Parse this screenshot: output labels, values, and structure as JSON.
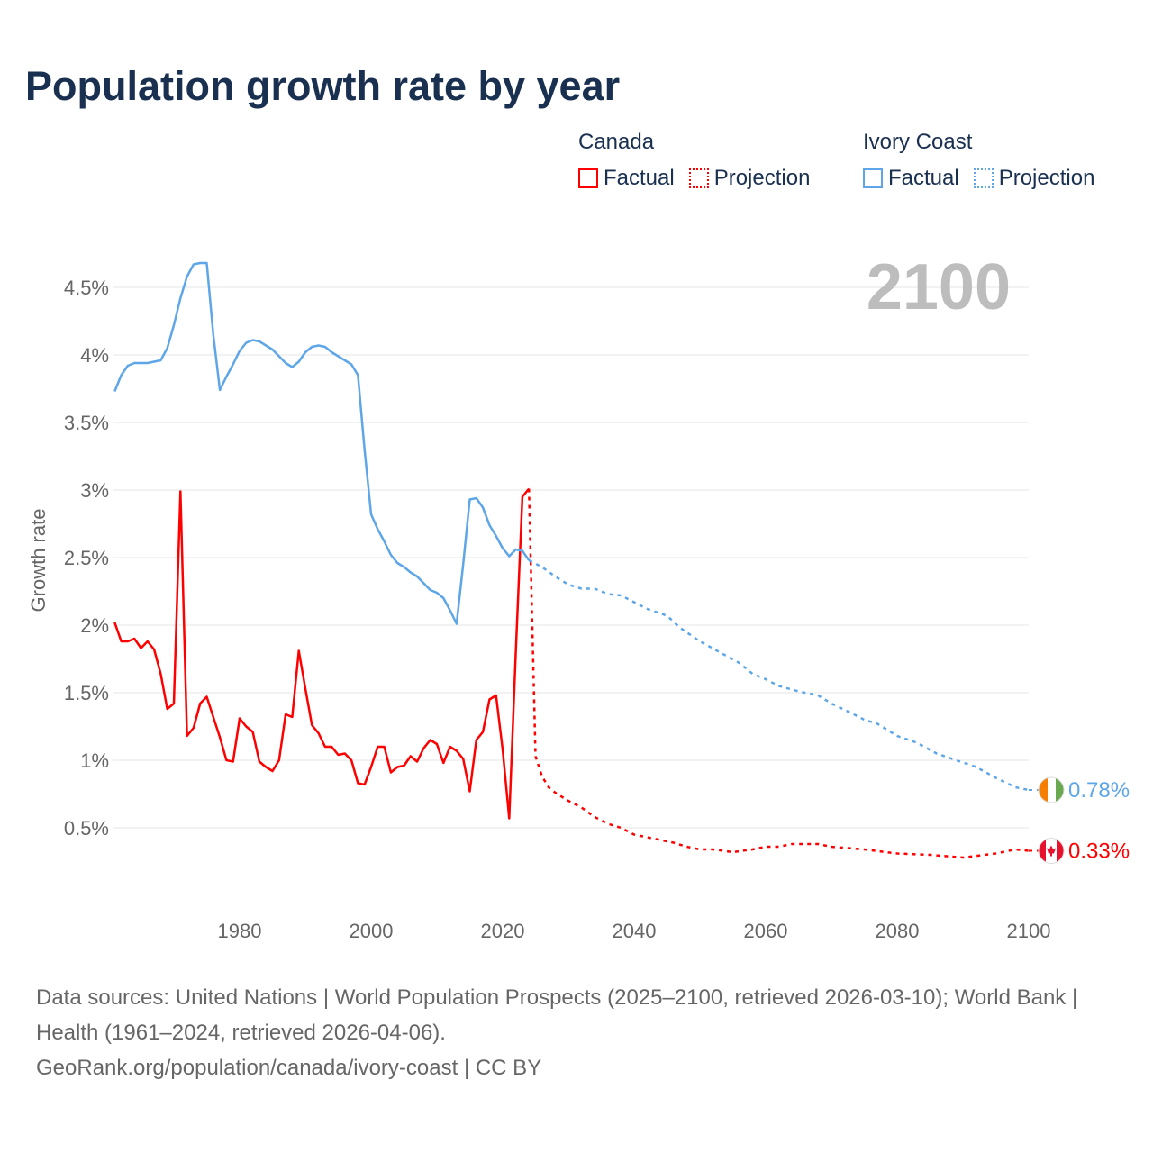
{
  "title": "Population growth rate by year",
  "big_year": "2100",
  "legend": [
    {
      "country": "Canada",
      "factual": "Factual",
      "projection": "Projection",
      "color": "#ff0000"
    },
    {
      "country": "Ivory Coast",
      "factual": "Factual",
      "projection": "Projection",
      "color": "#5ea6e8"
    }
  ],
  "footer": {
    "sources": "Data sources: United Nations | World Population Prospects (2025–2100, retrieved 2026-03-10); World Bank | Health (1961–2024, retrieved 2026-04-06).",
    "credit": "GeoRank.org/population/canada/ivory-coast | CC BY"
  },
  "chart_data": {
    "type": "line",
    "title": "Population growth rate by year",
    "ylabel": "Growth rate",
    "xlabel": "",
    "xlim": [
      1961,
      2100
    ],
    "ylim": [
      0,
      4.9
    ],
    "x_ticks": [
      1980,
      2000,
      2020,
      2040,
      2060,
      2080,
      2100
    ],
    "x_tick_labels": [
      "1980",
      "2000",
      "2020",
      "2040",
      "2060",
      "2080",
      "2100"
    ],
    "y_ticks": [
      0.5,
      1,
      1.5,
      2,
      2.5,
      3,
      3.5,
      4,
      4.5
    ],
    "y_tick_labels": [
      "0.5%",
      "1%",
      "1.5%",
      "2%",
      "2.5%",
      "3%",
      "3.5%",
      "4%",
      "4.5%"
    ],
    "grid": true,
    "legend_position": "top-right",
    "series": [
      {
        "name": "Canada",
        "color": "#ff0000",
        "end_label": "0.33%",
        "flag": "canada-flag",
        "factual": [
          [
            1961,
            2.02
          ],
          [
            1962,
            1.88
          ],
          [
            1963,
            1.88
          ],
          [
            1964,
            1.9
          ],
          [
            1965,
            1.83
          ],
          [
            1966,
            1.88
          ],
          [
            1967,
            1.82
          ],
          [
            1968,
            1.64
          ],
          [
            1969,
            1.38
          ],
          [
            1970,
            1.42
          ],
          [
            1971,
            2.99
          ],
          [
            1972,
            1.18
          ],
          [
            1973,
            1.24
          ],
          [
            1974,
            1.42
          ],
          [
            1975,
            1.47
          ],
          [
            1976,
            1.32
          ],
          [
            1977,
            1.17
          ],
          [
            1978,
            1.0
          ],
          [
            1979,
            0.99
          ],
          [
            1980,
            1.31
          ],
          [
            1981,
            1.25
          ],
          [
            1982,
            1.21
          ],
          [
            1983,
            0.99
          ],
          [
            1984,
            0.95
          ],
          [
            1985,
            0.92
          ],
          [
            1986,
            1.0
          ],
          [
            1987,
            1.34
          ],
          [
            1988,
            1.32
          ],
          [
            1989,
            1.81
          ],
          [
            1990,
            1.53
          ],
          [
            1991,
            1.26
          ],
          [
            1992,
            1.2
          ],
          [
            1993,
            1.1
          ],
          [
            1994,
            1.1
          ],
          [
            1995,
            1.04
          ],
          [
            1996,
            1.05
          ],
          [
            1997,
            1.0
          ],
          [
            1998,
            0.83
          ],
          [
            1999,
            0.82
          ],
          [
            2000,
            0.95
          ],
          [
            2001,
            1.1
          ],
          [
            2002,
            1.1
          ],
          [
            2003,
            0.91
          ],
          [
            2004,
            0.95
          ],
          [
            2005,
            0.96
          ],
          [
            2006,
            1.03
          ],
          [
            2007,
            0.99
          ],
          [
            2008,
            1.09
          ],
          [
            2009,
            1.15
          ],
          [
            2010,
            1.12
          ],
          [
            2011,
            0.98
          ],
          [
            2012,
            1.1
          ],
          [
            2013,
            1.07
          ],
          [
            2014,
            1.01
          ],
          [
            2015,
            0.77
          ],
          [
            2016,
            1.15
          ],
          [
            2017,
            1.21
          ],
          [
            2018,
            1.45
          ],
          [
            2019,
            1.48
          ],
          [
            2020,
            1.08
          ],
          [
            2021,
            0.57
          ],
          [
            2022,
            1.8
          ],
          [
            2023,
            2.95
          ],
          [
            2024,
            3.01
          ]
        ],
        "projection": [
          [
            2024,
            3.01
          ],
          [
            2025,
            1.03
          ],
          [
            2026,
            0.88
          ],
          [
            2027,
            0.8
          ],
          [
            2028,
            0.76
          ],
          [
            2030,
            0.7
          ],
          [
            2032,
            0.65
          ],
          [
            2034,
            0.58
          ],
          [
            2036,
            0.53
          ],
          [
            2038,
            0.5
          ],
          [
            2040,
            0.45
          ],
          [
            2044,
            0.41
          ],
          [
            2046,
            0.39
          ],
          [
            2048,
            0.36
          ],
          [
            2050,
            0.34
          ],
          [
            2052,
            0.34
          ],
          [
            2055,
            0.32
          ],
          [
            2058,
            0.34
          ],
          [
            2060,
            0.36
          ],
          [
            2062,
            0.36
          ],
          [
            2064,
            0.38
          ],
          [
            2068,
            0.38
          ],
          [
            2070,
            0.36
          ],
          [
            2075,
            0.34
          ],
          [
            2080,
            0.31
          ],
          [
            2085,
            0.3
          ],
          [
            2090,
            0.28
          ],
          [
            2095,
            0.31
          ],
          [
            2098,
            0.34
          ],
          [
            2100,
            0.33
          ]
        ]
      },
      {
        "name": "Ivory Coast",
        "color": "#5ea6e8",
        "end_label": "0.78%",
        "flag": "ivory-coast-flag",
        "factual": [
          [
            1961,
            3.73
          ],
          [
            1962,
            3.85
          ],
          [
            1963,
            3.92
          ],
          [
            1964,
            3.94
          ],
          [
            1965,
            3.94
          ],
          [
            1966,
            3.94
          ],
          [
            1967,
            3.95
          ],
          [
            1968,
            3.96
          ],
          [
            1969,
            4.05
          ],
          [
            1970,
            4.22
          ],
          [
            1971,
            4.42
          ],
          [
            1972,
            4.58
          ],
          [
            1973,
            4.67
          ],
          [
            1974,
            4.68
          ],
          [
            1975,
            4.68
          ],
          [
            1976,
            4.15
          ],
          [
            1977,
            3.74
          ],
          [
            1978,
            3.84
          ],
          [
            1979,
            3.93
          ],
          [
            1980,
            4.03
          ],
          [
            1981,
            4.09
          ],
          [
            1982,
            4.11
          ],
          [
            1983,
            4.1
          ],
          [
            1984,
            4.07
          ],
          [
            1985,
            4.04
          ],
          [
            1986,
            3.99
          ],
          [
            1987,
            3.94
          ],
          [
            1988,
            3.91
          ],
          [
            1989,
            3.95
          ],
          [
            1990,
            4.02
          ],
          [
            1991,
            4.06
          ],
          [
            1992,
            4.07
          ],
          [
            1993,
            4.06
          ],
          [
            1994,
            4.02
          ],
          [
            1995,
            3.99
          ],
          [
            1996,
            3.96
          ],
          [
            1997,
            3.93
          ],
          [
            1998,
            3.85
          ],
          [
            1999,
            3.3
          ],
          [
            2000,
            2.82
          ],
          [
            2001,
            2.71
          ],
          [
            2002,
            2.62
          ],
          [
            2003,
            2.52
          ],
          [
            2004,
            2.46
          ],
          [
            2005,
            2.43
          ],
          [
            2006,
            2.39
          ],
          [
            2007,
            2.36
          ],
          [
            2008,
            2.31
          ],
          [
            2009,
            2.26
          ],
          [
            2010,
            2.24
          ],
          [
            2011,
            2.2
          ],
          [
            2012,
            2.11
          ],
          [
            2013,
            2.01
          ],
          [
            2014,
            2.45
          ],
          [
            2015,
            2.93
          ],
          [
            2016,
            2.94
          ],
          [
            2017,
            2.87
          ],
          [
            2018,
            2.74
          ],
          [
            2019,
            2.66
          ],
          [
            2020,
            2.57
          ],
          [
            2021,
            2.51
          ],
          [
            2022,
            2.56
          ],
          [
            2023,
            2.55
          ],
          [
            2024,
            2.48
          ]
        ],
        "projection": [
          [
            2024,
            2.48
          ],
          [
            2026,
            2.43
          ],
          [
            2028,
            2.36
          ],
          [
            2030,
            2.3
          ],
          [
            2032,
            2.27
          ],
          [
            2034,
            2.27
          ],
          [
            2036,
            2.23
          ],
          [
            2038,
            2.22
          ],
          [
            2040,
            2.17
          ],
          [
            2042,
            2.12
          ],
          [
            2045,
            2.07
          ],
          [
            2047,
            1.98
          ],
          [
            2050,
            1.88
          ],
          [
            2053,
            1.8
          ],
          [
            2056,
            1.72
          ],
          [
            2058,
            1.64
          ],
          [
            2060,
            1.6
          ],
          [
            2062,
            1.55
          ],
          [
            2065,
            1.51
          ],
          [
            2068,
            1.48
          ],
          [
            2070,
            1.42
          ],
          [
            2073,
            1.35
          ],
          [
            2075,
            1.3
          ],
          [
            2077,
            1.27
          ],
          [
            2080,
            1.18
          ],
          [
            2083,
            1.13
          ],
          [
            2086,
            1.05
          ],
          [
            2089,
            1.0
          ],
          [
            2092,
            0.95
          ],
          [
            2095,
            0.87
          ],
          [
            2098,
            0.8
          ],
          [
            2100,
            0.78
          ]
        ]
      }
    ]
  }
}
